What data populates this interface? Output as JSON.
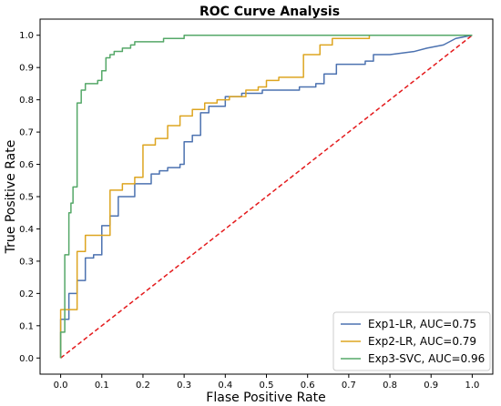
{
  "chart_data": {
    "type": "line",
    "title": "ROC Curve Analysis",
    "xlabel": "Flase Positive Rate",
    "ylabel": "True Positive Rate",
    "xlim": [
      -0.05,
      1.05
    ],
    "ylim": [
      -0.05,
      1.05
    ],
    "xticks": [
      "0.0",
      "0.1",
      "0.2",
      "0.3",
      "0.4",
      "0.5",
      "0.6",
      "0.7",
      "0.8",
      "0.9",
      "1.0"
    ],
    "yticks": [
      "0.0",
      "0.1",
      "0.2",
      "0.3",
      "0.4",
      "0.5",
      "0.6",
      "0.7",
      "0.8",
      "0.9",
      "1.0"
    ],
    "grid": false,
    "legend_position": "lower-right",
    "series": [
      {
        "name": "Exp1-LR, AUC=0.75",
        "color": "#4c72b0",
        "points": [
          [
            0,
            0
          ],
          [
            0,
            0.12
          ],
          [
            0.02,
            0.12
          ],
          [
            0.02,
            0.2
          ],
          [
            0.04,
            0.2
          ],
          [
            0.04,
            0.24
          ],
          [
            0.06,
            0.24
          ],
          [
            0.06,
            0.31
          ],
          [
            0.08,
            0.31
          ],
          [
            0.08,
            0.32
          ],
          [
            0.1,
            0.32
          ],
          [
            0.1,
            0.41
          ],
          [
            0.12,
            0.41
          ],
          [
            0.12,
            0.44
          ],
          [
            0.14,
            0.44
          ],
          [
            0.14,
            0.5
          ],
          [
            0.18,
            0.5
          ],
          [
            0.18,
            0.54
          ],
          [
            0.22,
            0.54
          ],
          [
            0.22,
            0.57
          ],
          [
            0.24,
            0.57
          ],
          [
            0.24,
            0.58
          ],
          [
            0.26,
            0.58
          ],
          [
            0.26,
            0.59
          ],
          [
            0.29,
            0.59
          ],
          [
            0.29,
            0.6
          ],
          [
            0.3,
            0.6
          ],
          [
            0.3,
            0.67
          ],
          [
            0.32,
            0.67
          ],
          [
            0.32,
            0.69
          ],
          [
            0.34,
            0.69
          ],
          [
            0.34,
            0.76
          ],
          [
            0.36,
            0.76
          ],
          [
            0.36,
            0.78
          ],
          [
            0.4,
            0.78
          ],
          [
            0.4,
            0.81
          ],
          [
            0.44,
            0.81
          ],
          [
            0.44,
            0.82
          ],
          [
            0.49,
            0.82
          ],
          [
            0.49,
            0.83
          ],
          [
            0.58,
            0.83
          ],
          [
            0.58,
            0.84
          ],
          [
            0.62,
            0.84
          ],
          [
            0.62,
            0.85
          ],
          [
            0.64,
            0.85
          ],
          [
            0.64,
            0.88
          ],
          [
            0.67,
            0.88
          ],
          [
            0.67,
            0.91
          ],
          [
            0.74,
            0.91
          ],
          [
            0.74,
            0.92
          ],
          [
            0.76,
            0.92
          ],
          [
            0.76,
            0.94
          ],
          [
            0.8,
            0.94
          ],
          [
            0.86,
            0.95
          ],
          [
            0.89,
            0.96
          ],
          [
            0.93,
            0.97
          ],
          [
            0.96,
            0.99
          ],
          [
            1,
            1
          ]
        ]
      },
      {
        "name": "Exp2-LR, AUC=0.79",
        "color": "#dda520",
        "points": [
          [
            0,
            0
          ],
          [
            0,
            0.15
          ],
          [
            0.04,
            0.15
          ],
          [
            0.04,
            0.33
          ],
          [
            0.06,
            0.33
          ],
          [
            0.06,
            0.38
          ],
          [
            0.12,
            0.38
          ],
          [
            0.12,
            0.52
          ],
          [
            0.15,
            0.52
          ],
          [
            0.15,
            0.54
          ],
          [
            0.18,
            0.54
          ],
          [
            0.18,
            0.56
          ],
          [
            0.2,
            0.56
          ],
          [
            0.2,
            0.66
          ],
          [
            0.23,
            0.66
          ],
          [
            0.23,
            0.68
          ],
          [
            0.26,
            0.68
          ],
          [
            0.26,
            0.72
          ],
          [
            0.29,
            0.72
          ],
          [
            0.29,
            0.75
          ],
          [
            0.32,
            0.75
          ],
          [
            0.32,
            0.77
          ],
          [
            0.35,
            0.77
          ],
          [
            0.35,
            0.79
          ],
          [
            0.38,
            0.79
          ],
          [
            0.38,
            0.8
          ],
          [
            0.41,
            0.8
          ],
          [
            0.41,
            0.81
          ],
          [
            0.45,
            0.81
          ],
          [
            0.45,
            0.83
          ],
          [
            0.48,
            0.83
          ],
          [
            0.48,
            0.84
          ],
          [
            0.5,
            0.84
          ],
          [
            0.5,
            0.86
          ],
          [
            0.53,
            0.86
          ],
          [
            0.53,
            0.87
          ],
          [
            0.59,
            0.87
          ],
          [
            0.59,
            0.94
          ],
          [
            0.63,
            0.94
          ],
          [
            0.63,
            0.97
          ],
          [
            0.66,
            0.97
          ],
          [
            0.66,
            0.99
          ],
          [
            0.75,
            0.99
          ],
          [
            0.75,
            1
          ],
          [
            1,
            1
          ]
        ]
      },
      {
        "name": "Exp3-SVC, AUC=0.96",
        "color": "#55a868",
        "points": [
          [
            0,
            0
          ],
          [
            0,
            0.08
          ],
          [
            0.01,
            0.08
          ],
          [
            0.01,
            0.32
          ],
          [
            0.02,
            0.32
          ],
          [
            0.02,
            0.45
          ],
          [
            0.025,
            0.45
          ],
          [
            0.025,
            0.48
          ],
          [
            0.03,
            0.48
          ],
          [
            0.03,
            0.53
          ],
          [
            0.04,
            0.53
          ],
          [
            0.04,
            0.79
          ],
          [
            0.05,
            0.79
          ],
          [
            0.05,
            0.83
          ],
          [
            0.06,
            0.83
          ],
          [
            0.06,
            0.85
          ],
          [
            0.09,
            0.85
          ],
          [
            0.09,
            0.86
          ],
          [
            0.1,
            0.86
          ],
          [
            0.1,
            0.89
          ],
          [
            0.11,
            0.89
          ],
          [
            0.11,
            0.93
          ],
          [
            0.12,
            0.93
          ],
          [
            0.12,
            0.94
          ],
          [
            0.13,
            0.94
          ],
          [
            0.13,
            0.95
          ],
          [
            0.15,
            0.95
          ],
          [
            0.15,
            0.96
          ],
          [
            0.17,
            0.96
          ],
          [
            0.17,
            0.97
          ],
          [
            0.18,
            0.97
          ],
          [
            0.18,
            0.98
          ],
          [
            0.25,
            0.98
          ],
          [
            0.25,
            0.99
          ],
          [
            0.3,
            0.99
          ],
          [
            0.3,
            1
          ],
          [
            1,
            1
          ]
        ]
      },
      {
        "name": "",
        "color": "#e41a1c",
        "dashed": true,
        "points": [
          [
            0,
            0
          ],
          [
            1,
            1
          ]
        ]
      }
    ]
  }
}
